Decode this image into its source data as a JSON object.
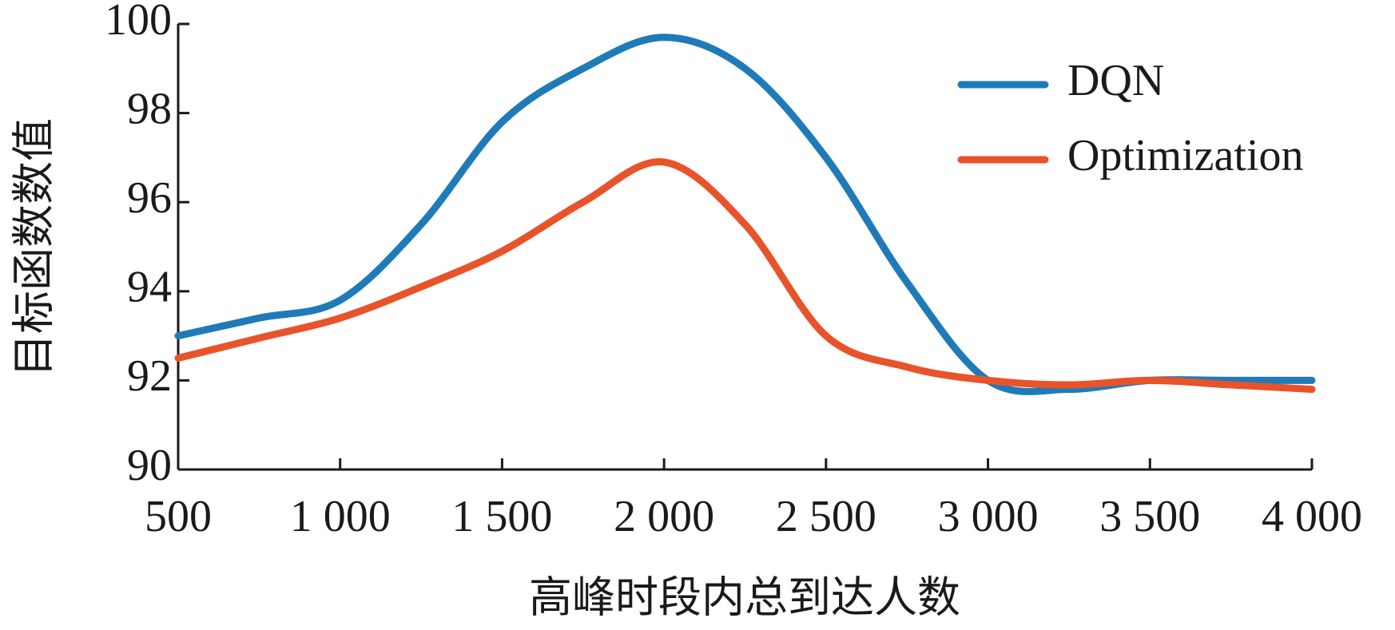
{
  "chart_data": {
    "type": "line",
    "x_label": "高峰时段内总到达人数",
    "y_label": "目标函数数值",
    "x": [
      500,
      750,
      1000,
      1250,
      1500,
      1750,
      2000,
      2250,
      2500,
      2750,
      3000,
      3250,
      3500,
      3750,
      4000
    ],
    "series": [
      {
        "name": "DQN",
        "color": "#1f7bb8",
        "values": [
          93.0,
          93.4,
          93.8,
          95.5,
          97.8,
          99.0,
          99.7,
          99.0,
          97.0,
          94.2,
          92.0,
          91.8,
          92.0,
          92.0,
          92.0
        ]
      },
      {
        "name": "Optimization",
        "color": "#e8532a",
        "values": [
          92.5,
          92.95,
          93.4,
          94.1,
          94.9,
          96.0,
          96.9,
          95.5,
          93.0,
          92.3,
          92.0,
          91.9,
          92.0,
          91.9,
          91.8
        ]
      }
    ],
    "xlim": [
      500,
      4000
    ],
    "xticks": [
      500,
      {
        "value": 1000,
        "label": "1 000"
      },
      {
        "value": 1500,
        "label": "1 500"
      },
      {
        "value": 2000,
        "label": "2 000"
      },
      {
        "value": 2500,
        "label": "2 500"
      },
      {
        "value": 3000,
        "label": "3 000"
      },
      {
        "value": 3500,
        "label": "3 500"
      },
      {
        "value": 4000,
        "label": "4 000"
      }
    ],
    "ylim": [
      90,
      100
    ],
    "yticks": [
      90,
      92,
      94,
      96,
      98,
      100
    ],
    "legend": "upper-right"
  }
}
